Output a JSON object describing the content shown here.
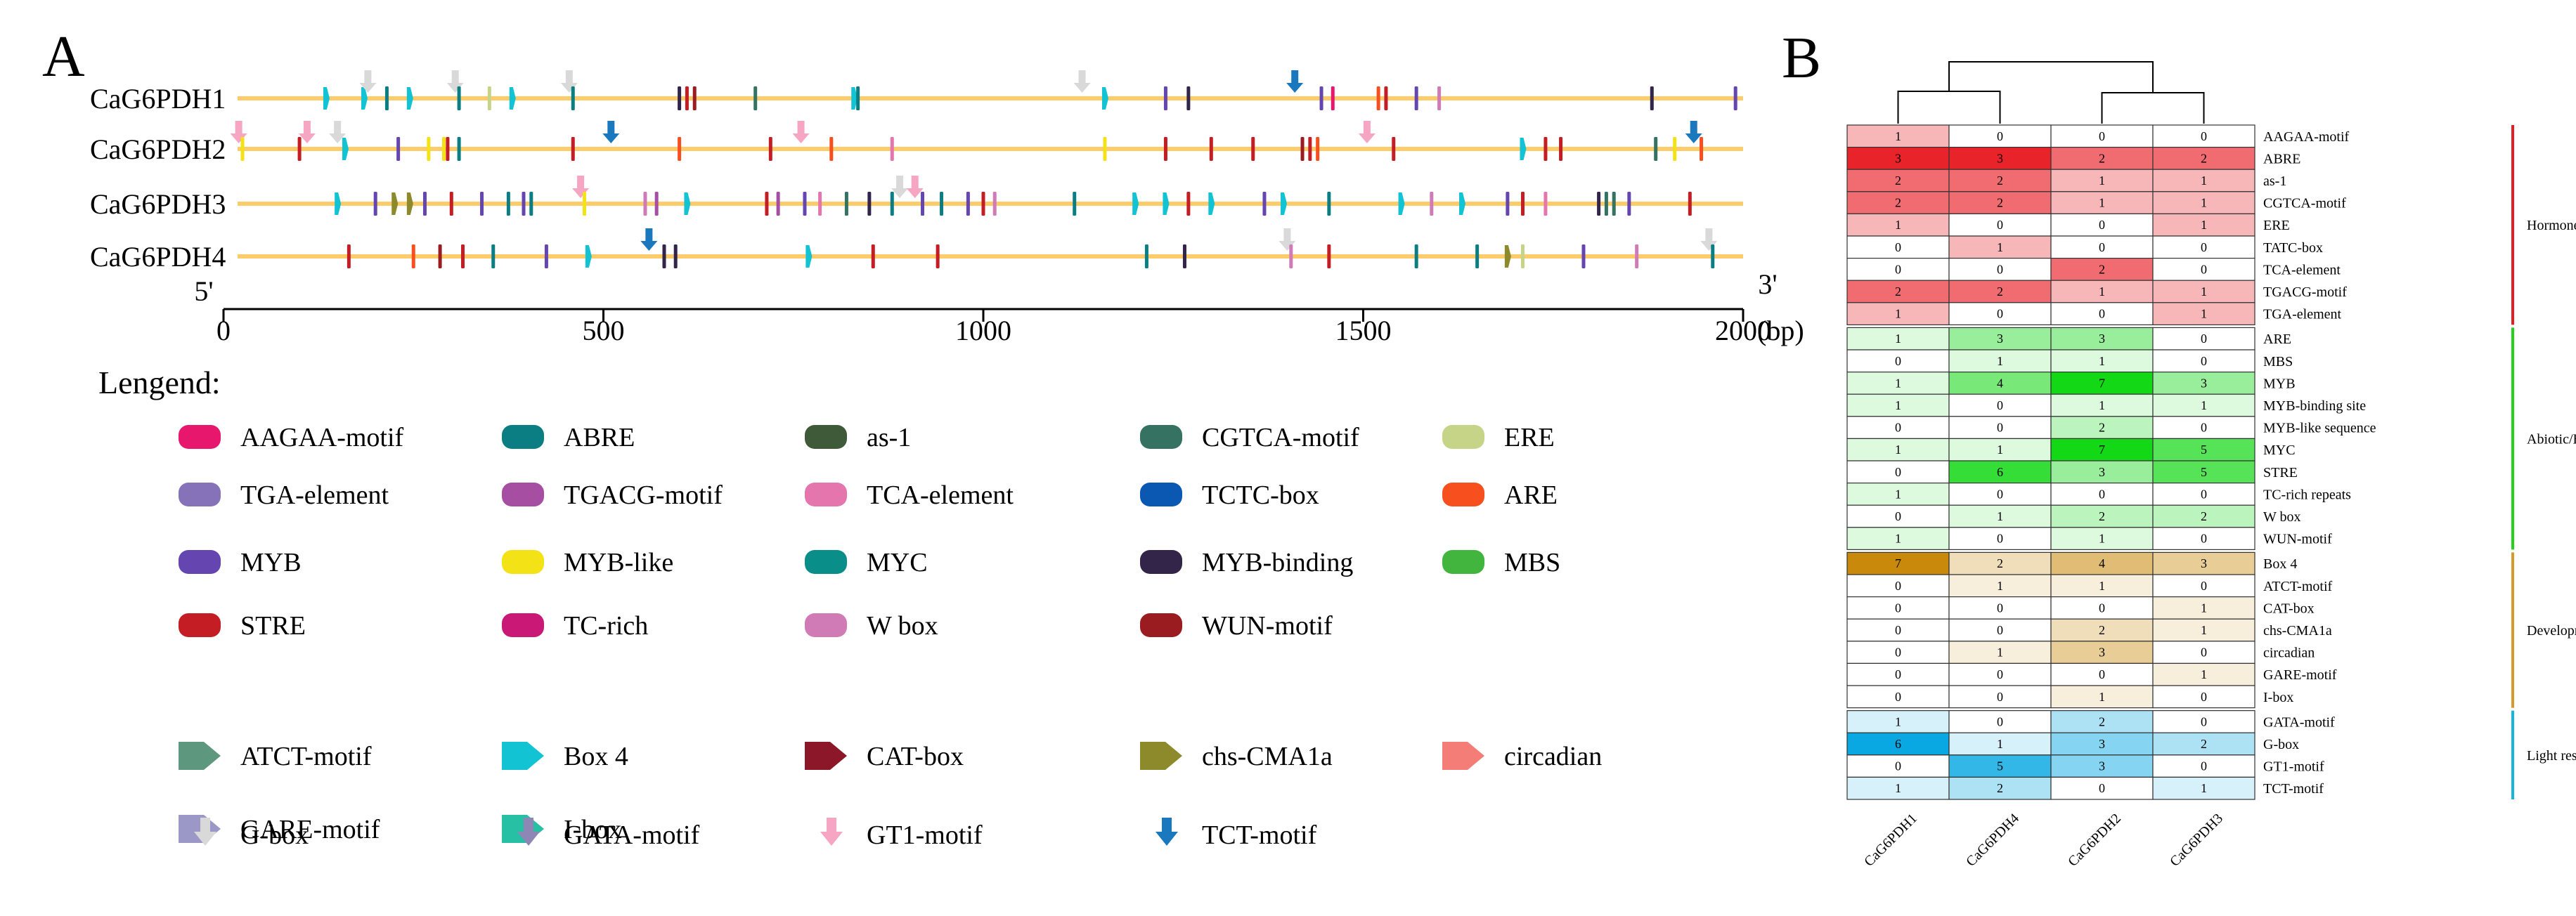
{
  "chart_data": [
    {
      "type": "motif-map",
      "panel_label": "A",
      "genes": [
        "CaG6PDH1",
        "CaG6PDH2",
        "CaG6PDH3",
        "CaG6PDH4"
      ],
      "end5_label": "5'",
      "end3_label": "3'",
      "x_range": [
        0,
        2000
      ],
      "x_ticks": [
        0,
        500,
        1000,
        1500,
        2000
      ],
      "x_unit": "(bp)",
      "legend_title": "Lengend:",
      "legend": [
        {
          "name": "AAGAA-motif",
          "shape": "rect",
          "color": "#e8176e"
        },
        {
          "name": "ABRE",
          "shape": "rect",
          "color": "#0b7e83"
        },
        {
          "name": "as-1",
          "shape": "rect",
          "color": "#3e5a39"
        },
        {
          "name": "CGTCA-motif",
          "shape": "rect",
          "color": "#367261"
        },
        {
          "name": "ERE",
          "shape": "rect",
          "color": "#c5d487"
        },
        {
          "name": "TGA-element",
          "shape": "rect",
          "color": "#8572b9"
        },
        {
          "name": "TGACG-motif",
          "shape": "rect",
          "color": "#a64ea1"
        },
        {
          "name": "TCA-element",
          "shape": "rect",
          "color": "#e576ad"
        },
        {
          "name": "TCTC-box",
          "shape": "rect",
          "color": "#0a58b2"
        },
        {
          "name": "ARE",
          "shape": "rect",
          "color": "#f84f1f"
        },
        {
          "name": "MYB",
          "shape": "rect",
          "color": "#6545b0"
        },
        {
          "name": "MYB-like",
          "shape": "rect",
          "color": "#f3e216"
        },
        {
          "name": "MYC",
          "shape": "rect",
          "color": "#0a8e8a"
        },
        {
          "name": "MYB-binding",
          "shape": "rect",
          "color": "#322549"
        },
        {
          "name": "MBS",
          "shape": "rect",
          "color": "#41b53e"
        },
        {
          "name": "STRE",
          "shape": "rect",
          "color": "#c41d24"
        },
        {
          "name": "TC-rich",
          "shape": "rect",
          "color": "#c91876"
        },
        {
          "name": "W box",
          "shape": "rect",
          "color": "#d07bb5"
        },
        {
          "name": "WUN-motif",
          "shape": "rect",
          "color": "#9b1c20"
        },
        {
          "name": "ATCT-motif",
          "shape": "pent",
          "color": "#5d977e"
        },
        {
          "name": "Box 4",
          "shape": "pent",
          "color": "#12c3d3"
        },
        {
          "name": "CAT-box",
          "shape": "pent",
          "color": "#8b1728"
        },
        {
          "name": "chs-CMA1a",
          "shape": "pent",
          "color": "#8c8a2b"
        },
        {
          "name": "circadian",
          "shape": "pent",
          "color": "#f57d77"
        },
        {
          "name": "GARE-motif",
          "shape": "pent",
          "color": "#9b97c6"
        },
        {
          "name": "I-box",
          "shape": "pent",
          "color": "#27c0a4"
        },
        {
          "name": "G-box",
          "shape": "arrow",
          "color": "#d9d9d9"
        },
        {
          "name": "GATA-motif",
          "shape": "arrow",
          "color": "#8e86b5"
        },
        {
          "name": "GT1-motif",
          "shape": "arrow",
          "color": "#f6a5c3"
        },
        {
          "name": "TCT-motif",
          "shape": "arrow",
          "color": "#1a78be"
        }
      ],
      "elements": [
        [
          [
            "Box 4",
            135
          ],
          [
            "Box 4",
            185
          ],
          [
            "G-box",
            190
          ],
          [
            "ABRE",
            215
          ],
          [
            "Box 4",
            245
          ],
          [
            "G-box",
            305
          ],
          [
            "ABRE",
            310
          ],
          [
            "ERE",
            350
          ],
          [
            "Box 4",
            380
          ],
          [
            "G-box",
            455
          ],
          [
            "ABRE",
            460
          ],
          [
            "MYB-binding",
            600
          ],
          [
            "STRE",
            610
          ],
          [
            "WUN-motif",
            620
          ],
          [
            "CGTCA-motif",
            700
          ],
          [
            "Box 4",
            830
          ],
          [
            "ABRE",
            835
          ],
          [
            "G-box",
            1130
          ],
          [
            "Box 4",
            1160
          ],
          [
            "MYB",
            1240
          ],
          [
            "MYB-binding",
            1270
          ],
          [
            "TCT-motif",
            1410
          ],
          [
            "MYB",
            1445
          ],
          [
            "AAGAA-motif",
            1460
          ],
          [
            "ARE",
            1520
          ],
          [
            "STRE",
            1530
          ],
          [
            "MYB",
            1570
          ],
          [
            "W box",
            1600
          ],
          [
            "MYB-binding",
            1880
          ],
          [
            "MYB",
            1990
          ]
        ],
        [
          [
            "GT1-motif",
            20
          ],
          [
            "MYB-like",
            25
          ],
          [
            "STRE",
            100
          ],
          [
            "GT1-motif",
            110
          ],
          [
            "G-box",
            150
          ],
          [
            "Box 4",
            160
          ],
          [
            "MYB",
            230
          ],
          [
            "MYB-like",
            270
          ],
          [
            "MYB-like",
            290
          ],
          [
            "STRE",
            295
          ],
          [
            "ABRE",
            310
          ],
          [
            "STRE",
            460
          ],
          [
            "TCT-motif",
            510
          ],
          [
            "ARE",
            600
          ],
          [
            "STRE",
            720
          ],
          [
            "GT1-motif",
            760
          ],
          [
            "ARE",
            800
          ],
          [
            "TCA-element",
            880
          ],
          [
            "MYB-like",
            1160
          ],
          [
            "STRE",
            1240
          ],
          [
            "STRE",
            1300
          ],
          [
            "STRE",
            1355
          ],
          [
            "WUN-motif",
            1420
          ],
          [
            "STRE",
            1430
          ],
          [
            "ARE",
            1440
          ],
          [
            "GT1-motif",
            1505
          ],
          [
            "STRE",
            1540
          ],
          [
            "Box 4",
            1710
          ],
          [
            "STRE",
            1740
          ],
          [
            "STRE",
            1760
          ],
          [
            "CGTCA-motif",
            1885
          ],
          [
            "MYB-like",
            1910
          ],
          [
            "TCT-motif",
            1935
          ],
          [
            "ARE",
            1945
          ]
        ],
        [
          [
            "Box 4",
            150
          ],
          [
            "MYB",
            200
          ],
          [
            "chs-CMA1a",
            225
          ],
          [
            "chs-CMA1a",
            245
          ],
          [
            "MYB",
            265
          ],
          [
            "STRE",
            300
          ],
          [
            "MYB",
            340
          ],
          [
            "ABRE",
            375
          ],
          [
            "MYB",
            395
          ],
          [
            "ABRE",
            405
          ],
          [
            "GT1-motif",
            470
          ],
          [
            "MYB-like",
            475
          ],
          [
            "W box",
            555
          ],
          [
            "TGACG-motif",
            570
          ],
          [
            "Box 4",
            610
          ],
          [
            "STRE",
            715
          ],
          [
            "TGACG-motif",
            730
          ],
          [
            "MYB",
            765
          ],
          [
            "TCA-element",
            785
          ],
          [
            "CGTCA-motif",
            820
          ],
          [
            "MYB-binding",
            850
          ],
          [
            "ABRE",
            880
          ],
          [
            "G-box",
            890
          ],
          [
            "GT1-motif",
            910
          ],
          [
            "MYB",
            920
          ],
          [
            "ABRE",
            945
          ],
          [
            "MYB",
            980
          ],
          [
            "STRE",
            1000
          ],
          [
            "W box",
            1015
          ],
          [
            "ABRE",
            1120
          ],
          [
            "Box 4",
            1200
          ],
          [
            "Box 4",
            1240
          ],
          [
            "STRE",
            1270
          ],
          [
            "Box 4",
            1300
          ],
          [
            "MYB",
            1370
          ],
          [
            "Box 4",
            1395
          ],
          [
            "ABRE",
            1455
          ],
          [
            "Box 4",
            1550
          ],
          [
            "W box",
            1590
          ],
          [
            "Box 4",
            1630
          ],
          [
            "MYB",
            1690
          ],
          [
            "STRE",
            1710
          ],
          [
            "TCA-element",
            1740
          ],
          [
            "MYB-binding",
            1810
          ],
          [
            "CGTCA-motif",
            1820
          ],
          [
            "CGTCA-motif",
            1830
          ],
          [
            "MYB",
            1850
          ],
          [
            "STRE",
            1930
          ]
        ],
        [
          [
            "STRE",
            165
          ],
          [
            "ARE",
            250
          ],
          [
            "WUN-motif",
            285
          ],
          [
            "STRE",
            315
          ],
          [
            "ABRE",
            355
          ],
          [
            "MYB",
            425
          ],
          [
            "Box 4",
            480
          ],
          [
            "TCT-motif",
            560
          ],
          [
            "MYB-binding",
            580
          ],
          [
            "MYB-binding",
            595
          ],
          [
            "Box 4",
            770
          ],
          [
            "STRE",
            855
          ],
          [
            "STRE",
            940
          ],
          [
            "ABRE",
            1215
          ],
          [
            "MYB-binding",
            1265
          ],
          [
            "G-box",
            1400
          ],
          [
            "W box",
            1405
          ],
          [
            "STRE",
            1455
          ],
          [
            "ABRE",
            1570
          ],
          [
            "ABRE",
            1650
          ],
          [
            "chs-CMA1a",
            1690
          ],
          [
            "ERE",
            1710
          ],
          [
            "MYB",
            1790
          ],
          [
            "W box",
            1860
          ],
          [
            "G-box",
            1955
          ],
          [
            "ABRE",
            1960
          ]
        ]
      ]
    },
    {
      "type": "heatmap",
      "panel_label": "B",
      "columns": [
        "CaG6PDH1",
        "CaG6PDH4",
        "CaG6PDH2",
        "CaG6PDH3"
      ],
      "groups": [
        {
          "name": "Hormone",
          "color": "#e51e25",
          "cell_color": "#e8232a",
          "rows": [
            {
              "label": "AAGAA-motif",
              "values": [
                1,
                0,
                0,
                0
              ]
            },
            {
              "label": "ABRE",
              "values": [
                3,
                3,
                2,
                2
              ]
            },
            {
              "label": "as-1",
              "values": [
                2,
                2,
                1,
                1
              ]
            },
            {
              "label": "CGTCA-motif",
              "values": [
                2,
                2,
                1,
                1
              ]
            },
            {
              "label": "ERE",
              "values": [
                1,
                0,
                0,
                1
              ]
            },
            {
              "label": "TATC-box",
              "values": [
                0,
                1,
                0,
                0
              ]
            },
            {
              "label": "TCA-element",
              "values": [
                0,
                0,
                2,
                0
              ]
            },
            {
              "label": "TGACG-motif",
              "values": [
                2,
                2,
                1,
                1
              ]
            },
            {
              "label": "TGA-element",
              "values": [
                1,
                0,
                0,
                1
              ]
            }
          ]
        },
        {
          "name": "Abiotic/Biotic stress",
          "color": "#22d31c",
          "cell_color": "#12d815",
          "rows": [
            {
              "label": "ARE",
              "values": [
                1,
                3,
                3,
                0
              ]
            },
            {
              "label": "MBS",
              "values": [
                0,
                1,
                1,
                0
              ]
            },
            {
              "label": "MYB",
              "values": [
                1,
                4,
                7,
                3
              ]
            },
            {
              "label": "MYB-binding site",
              "values": [
                1,
                0,
                1,
                1
              ]
            },
            {
              "label": "MYB-like sequence",
              "values": [
                0,
                0,
                2,
                0
              ]
            },
            {
              "label": "MYC",
              "values": [
                1,
                1,
                7,
                5
              ]
            },
            {
              "label": "STRE",
              "values": [
                0,
                6,
                3,
                5
              ]
            },
            {
              "label": "TC-rich repeats",
              "values": [
                1,
                0,
                0,
                0
              ]
            },
            {
              "label": "W box",
              "values": [
                0,
                1,
                2,
                2
              ]
            },
            {
              "label": "WUN-motif",
              "values": [
                1,
                0,
                1,
                0
              ]
            }
          ]
        },
        {
          "name": "Development",
          "color": "#d79a2a",
          "cell_color": "#c98a0c",
          "rows": [
            {
              "label": "Box 4",
              "values": [
                7,
                2,
                4,
                3
              ]
            },
            {
              "label": "ATCT-motif",
              "values": [
                0,
                1,
                1,
                0
              ]
            },
            {
              "label": "CAT-box",
              "values": [
                0,
                0,
                0,
                1
              ]
            },
            {
              "label": "chs-CMA1a",
              "values": [
                0,
                0,
                2,
                1
              ]
            },
            {
              "label": "circadian",
              "values": [
                0,
                1,
                3,
                0
              ]
            },
            {
              "label": "GARE-motif",
              "values": [
                0,
                0,
                0,
                1
              ]
            },
            {
              "label": "I-box",
              "values": [
                0,
                0,
                1,
                0
              ]
            }
          ]
        },
        {
          "name": "Light responsive",
          "color": "#16b6e3",
          "cell_color": "#0aa8e2",
          "rows": [
            {
              "label": "GATA-motif",
              "values": [
                1,
                0,
                2,
                0
              ]
            },
            {
              "label": "G-box",
              "values": [
                6,
                1,
                3,
                2
              ]
            },
            {
              "label": "GT1-motif",
              "values": [
                0,
                5,
                3,
                0
              ]
            },
            {
              "label": "TCT-motif",
              "values": [
                1,
                2,
                0,
                1
              ]
            }
          ]
        }
      ]
    }
  ]
}
